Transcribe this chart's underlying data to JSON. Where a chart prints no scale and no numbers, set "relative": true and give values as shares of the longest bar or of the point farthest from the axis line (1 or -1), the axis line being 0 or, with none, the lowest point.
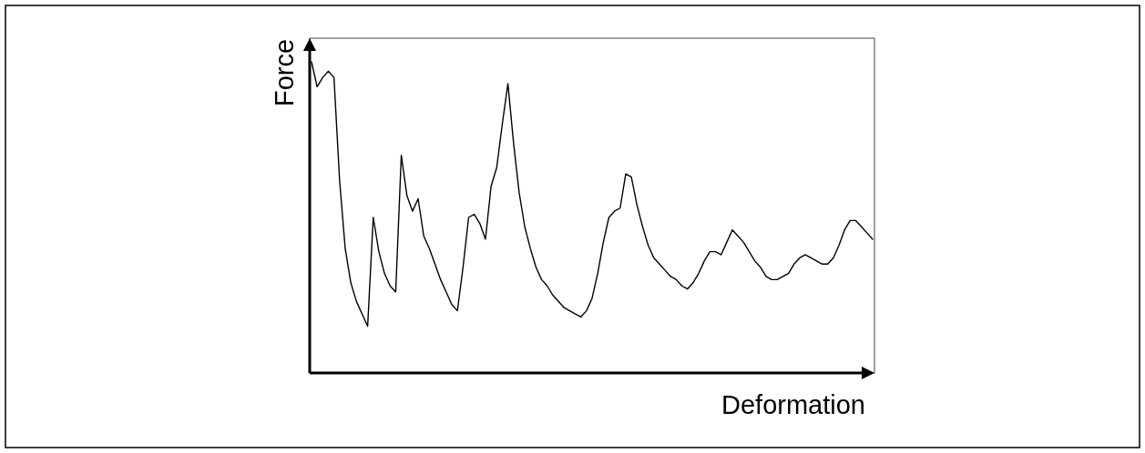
{
  "chart_data": {
    "type": "line",
    "relative": true,
    "xlabel": "Deformation",
    "ylabel": "Force",
    "marker": "none",
    "line_style": "solid",
    "categories": [
      null,
      null,
      null,
      null,
      null,
      null,
      null,
      null,
      null,
      null,
      null,
      null,
      null,
      null,
      null,
      null,
      null,
      null,
      null,
      null,
      null,
      null,
      null,
      null,
      null,
      null,
      null,
      null,
      null,
      null,
      null,
      null,
      null,
      null,
      null,
      null,
      null,
      null,
      null,
      null,
      null,
      null,
      null,
      null,
      null,
      null,
      null,
      null,
      null,
      null,
      null,
      null,
      null,
      null,
      null,
      null,
      null,
      null,
      null,
      null,
      null,
      null,
      null,
      null,
      null,
      null,
      null,
      null,
      null,
      null,
      null,
      null,
      null,
      null,
      null,
      null,
      null,
      null,
      null,
      null,
      null,
      null,
      null,
      null,
      null,
      null,
      null,
      null,
      null,
      null,
      null,
      null,
      null,
      null,
      null,
      null,
      null,
      null,
      null,
      null,
      null
    ],
    "series": [
      {
        "color": "#000000",
        "values": [
          1.0,
          0.92,
          0.95,
          0.97,
          0.95,
          0.62,
          0.4,
          0.29,
          0.23,
          0.19,
          0.15,
          0.5,
          0.39,
          0.32,
          0.28,
          0.26,
          0.7,
          0.57,
          0.52,
          0.56,
          0.44,
          0.4,
          0.35,
          0.3,
          0.26,
          0.22,
          0.2,
          0.34,
          0.5,
          0.51,
          0.48,
          0.43,
          0.6,
          0.66,
          0.8,
          0.93,
          0.74,
          0.58,
          0.47,
          0.4,
          0.34,
          0.3,
          0.28,
          0.25,
          0.23,
          0.21,
          0.2,
          0.19,
          0.18,
          0.2,
          0.24,
          0.32,
          0.42,
          0.5,
          0.52,
          0.53,
          0.64,
          0.63,
          0.54,
          0.47,
          0.41,
          0.37,
          0.35,
          0.33,
          0.31,
          0.3,
          0.28,
          0.27,
          0.29,
          0.32,
          0.36,
          0.39,
          0.39,
          0.38,
          0.42,
          0.46,
          0.44,
          0.42,
          0.39,
          0.36,
          0.34,
          0.31,
          0.3,
          0.3,
          0.31,
          0.32,
          0.35,
          0.37,
          0.38,
          0.37,
          0.36,
          0.35,
          0.35,
          0.37,
          0.41,
          0.46,
          0.49,
          0.49,
          0.47,
          0.45,
          0.43
        ]
      }
    ]
  }
}
